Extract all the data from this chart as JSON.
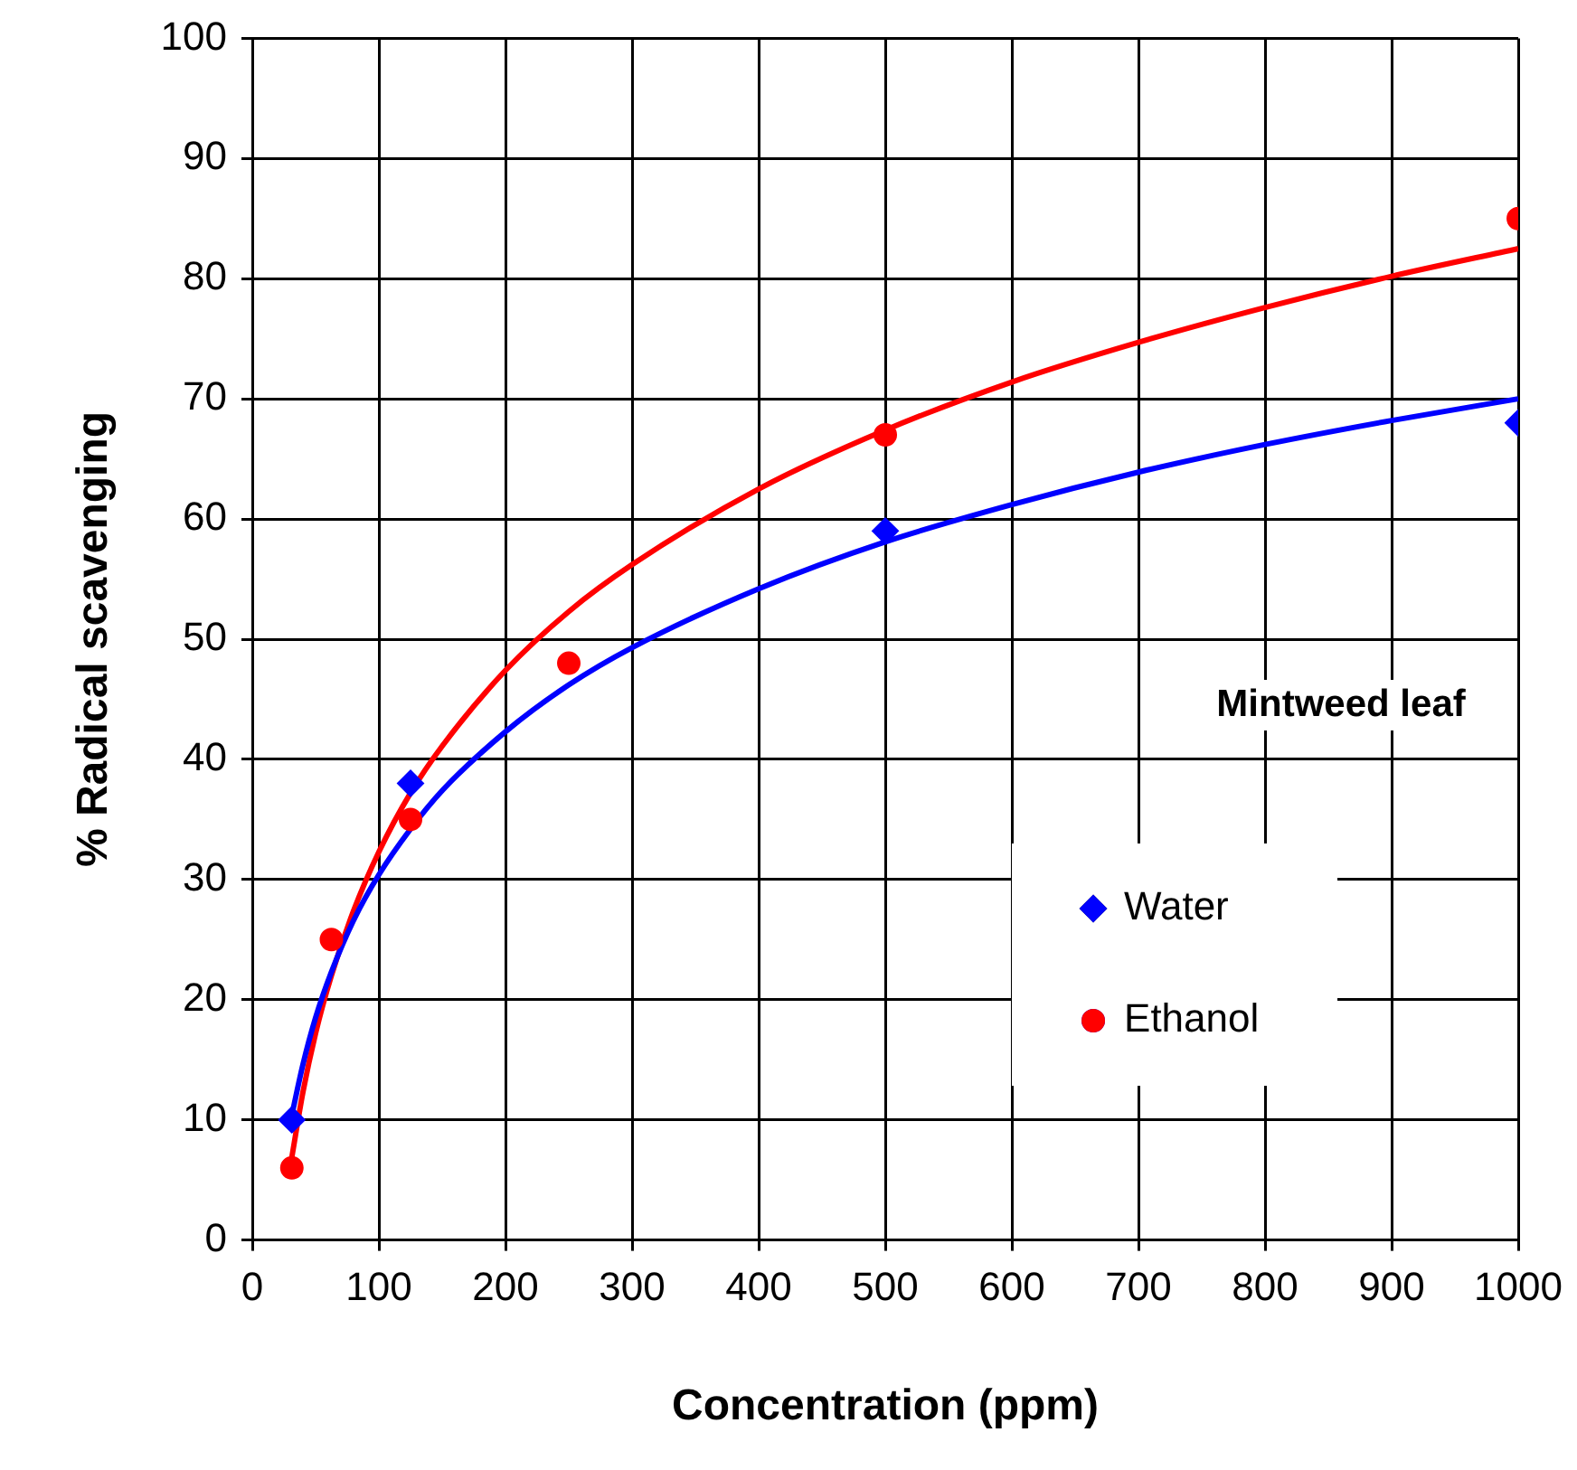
{
  "chart_data": {
    "type": "scatter",
    "xlabel": "Concentration (ppm)",
    "ylabel": "% Radical scavenging",
    "annotations": [
      "Mintweed leaf"
    ],
    "xlim": [
      0,
      1000
    ],
    "xticks": [
      0,
      100,
      200,
      300,
      400,
      500,
      600,
      700,
      800,
      900,
      1000
    ],
    "ylim": [
      0,
      100
    ],
    "yticks": [
      0,
      10,
      20,
      30,
      40,
      50,
      60,
      70,
      80,
      90,
      100
    ],
    "grid": true,
    "legend": "bottom right",
    "series": [
      {
        "name": "Water",
        "color": "#0000ff",
        "marker": "diamond",
        "x": [
          31.25,
          125,
          500,
          1000
        ],
        "values": [
          10,
          38,
          59,
          68
        ]
      },
      {
        "name": "Ethanol",
        "color": "#ff0000",
        "marker": "circle",
        "x": [
          31.25,
          62.5,
          125,
          250,
          500,
          1000
        ],
        "values": [
          6,
          25,
          35,
          48,
          67,
          85
        ]
      },
      {
        "type": "line",
        "color": "#0000ff",
        "marker": "none",
        "x": [
          31.25,
          40,
          50,
          62.5,
          80,
          100,
          125,
          150,
          200,
          250,
          300,
          400,
          500,
          600,
          700,
          800,
          900,
          1000
        ],
        "values": [
          10.4,
          14.6,
          18.5,
          22.3,
          26.6,
          30.4,
          34.2,
          37.4,
          42.3,
          46.2,
          49.3,
          54.2,
          58.1,
          61.2,
          63.9,
          66.2,
          68.2,
          70.0
        ]
      },
      {
        "type": "line",
        "color": "#ff0000",
        "marker": "none",
        "x": [
          31.25,
          40,
          50,
          62.5,
          80,
          100,
          125,
          150,
          200,
          250,
          300,
          400,
          500,
          600,
          700,
          800,
          900,
          1000
        ],
        "values": [
          6.9,
          12.3,
          17.2,
          22.0,
          27.4,
          32.3,
          37.2,
          41.1,
          47.4,
          52.3,
          56.2,
          62.5,
          67.4,
          71.4,
          74.7,
          77.6,
          80.2,
          82.5
        ]
      }
    ]
  }
}
